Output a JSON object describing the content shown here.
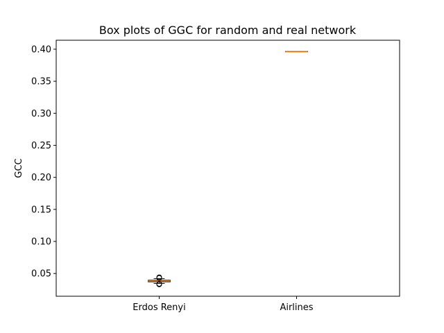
{
  "chart_data": {
    "type": "box",
    "title": "Box plots of GGC for random and real network",
    "xlabel": "",
    "ylabel": "GCC",
    "ylim": [
      0.0145,
      0.414
    ],
    "yticks": [
      0.05,
      0.1,
      0.15,
      0.2,
      0.25,
      0.3,
      0.35,
      0.4
    ],
    "ytick_labels": [
      "0.05",
      "0.10",
      "0.15",
      "0.20",
      "0.25",
      "0.30",
      "0.35",
      "0.40"
    ],
    "categories": [
      "Erdos Renyi",
      "Airlines"
    ],
    "grid": false,
    "boxes": [
      {
        "label": "Erdos Renyi",
        "whislo": 0.0345,
        "q1": 0.037,
        "median": 0.0383,
        "q3": 0.0395,
        "whishi": 0.042,
        "fliers": [
          0.033,
          0.0338,
          0.043,
          0.044
        ]
      },
      {
        "label": "Airlines",
        "whislo": 0.3965,
        "q1": 0.3965,
        "median": 0.3965,
        "q3": 0.3965,
        "whishi": 0.3965,
        "fliers": []
      }
    ],
    "colors": {
      "box": "#000000",
      "median": "#ff7f0e",
      "flier": "#000000"
    }
  }
}
